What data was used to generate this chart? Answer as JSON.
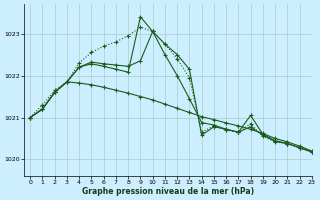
{
  "background_color": "#cceeff",
  "grid_color": "#aacccc",
  "line_color": "#1a5c1a",
  "title": "Graphe pression niveau de la mer (hPa)",
  "xlim": [
    -0.5,
    23
  ],
  "ylim": [
    1019.6,
    1023.7
  ],
  "yticks": [
    1020,
    1021,
    1022,
    1023
  ],
  "xticks": [
    0,
    1,
    2,
    3,
    4,
    5,
    6,
    7,
    8,
    9,
    10,
    11,
    12,
    13,
    14,
    15,
    16,
    17,
    18,
    19,
    20,
    21,
    22,
    23
  ],
  "series": [
    {
      "x": [
        0,
        1,
        2,
        3,
        4,
        5,
        6,
        7,
        8,
        9,
        10,
        11,
        12,
        13,
        14,
        15,
        16,
        17,
        18,
        19,
        20,
        21,
        22,
        23
      ],
      "y": [
        1021.0,
        1021.3,
        1021.65,
        1021.85,
        1022.3,
        1022.55,
        1022.7,
        1022.8,
        1022.95,
        1023.15,
        1023.05,
        1022.75,
        1022.4,
        1021.95,
        1020.65,
        1020.8,
        1020.7,
        1020.65,
        1020.85,
        1020.55,
        1020.42,
        1020.38,
        1020.28,
        1020.18
      ],
      "style": "dotted"
    },
    {
      "x": [
        0,
        1,
        2,
        3,
        4,
        5,
        6,
        7,
        8,
        9,
        10,
        11,
        12,
        13,
        14,
        15,
        16,
        17,
        18,
        19,
        20,
        21,
        22,
        23
      ],
      "y": [
        1021.0,
        1021.2,
        1021.6,
        1021.85,
        1021.82,
        1021.78,
        1021.72,
        1021.65,
        1021.58,
        1021.5,
        1021.42,
        1021.32,
        1021.22,
        1021.12,
        1021.02,
        1020.95,
        1020.87,
        1020.8,
        1020.72,
        1020.62,
        1020.5,
        1020.42,
        1020.32,
        1020.2
      ],
      "style": "solid"
    },
    {
      "x": [
        0,
        1,
        2,
        3,
        4,
        5,
        6,
        7,
        8,
        9,
        10,
        11,
        12,
        13,
        14,
        15,
        16,
        17,
        18,
        19,
        20,
        21,
        22,
        23
      ],
      "y": [
        1021.0,
        1021.2,
        1021.6,
        1021.85,
        1022.2,
        1022.28,
        1022.22,
        1022.15,
        1022.08,
        1023.4,
        1023.05,
        1022.75,
        1022.5,
        1022.15,
        1020.58,
        1020.78,
        1020.72,
        1020.65,
        1021.05,
        1020.6,
        1020.45,
        1020.38,
        1020.28,
        1020.18
      ],
      "style": "solid"
    },
    {
      "x": [
        0,
        1,
        2,
        3,
        4,
        5,
        6,
        7,
        8,
        9,
        10,
        11,
        12,
        13,
        14,
        15,
        16,
        17,
        18,
        19,
        20,
        21,
        22,
        23
      ],
      "y": [
        1021.0,
        1021.2,
        1021.6,
        1021.85,
        1022.2,
        1022.32,
        1022.28,
        1022.25,
        1022.22,
        1022.35,
        1023.05,
        1022.5,
        1022.0,
        1021.45,
        1020.88,
        1020.82,
        1020.72,
        1020.65,
        1020.78,
        1020.58,
        1020.43,
        1020.38,
        1020.28,
        1020.18
      ],
      "style": "solid"
    }
  ]
}
